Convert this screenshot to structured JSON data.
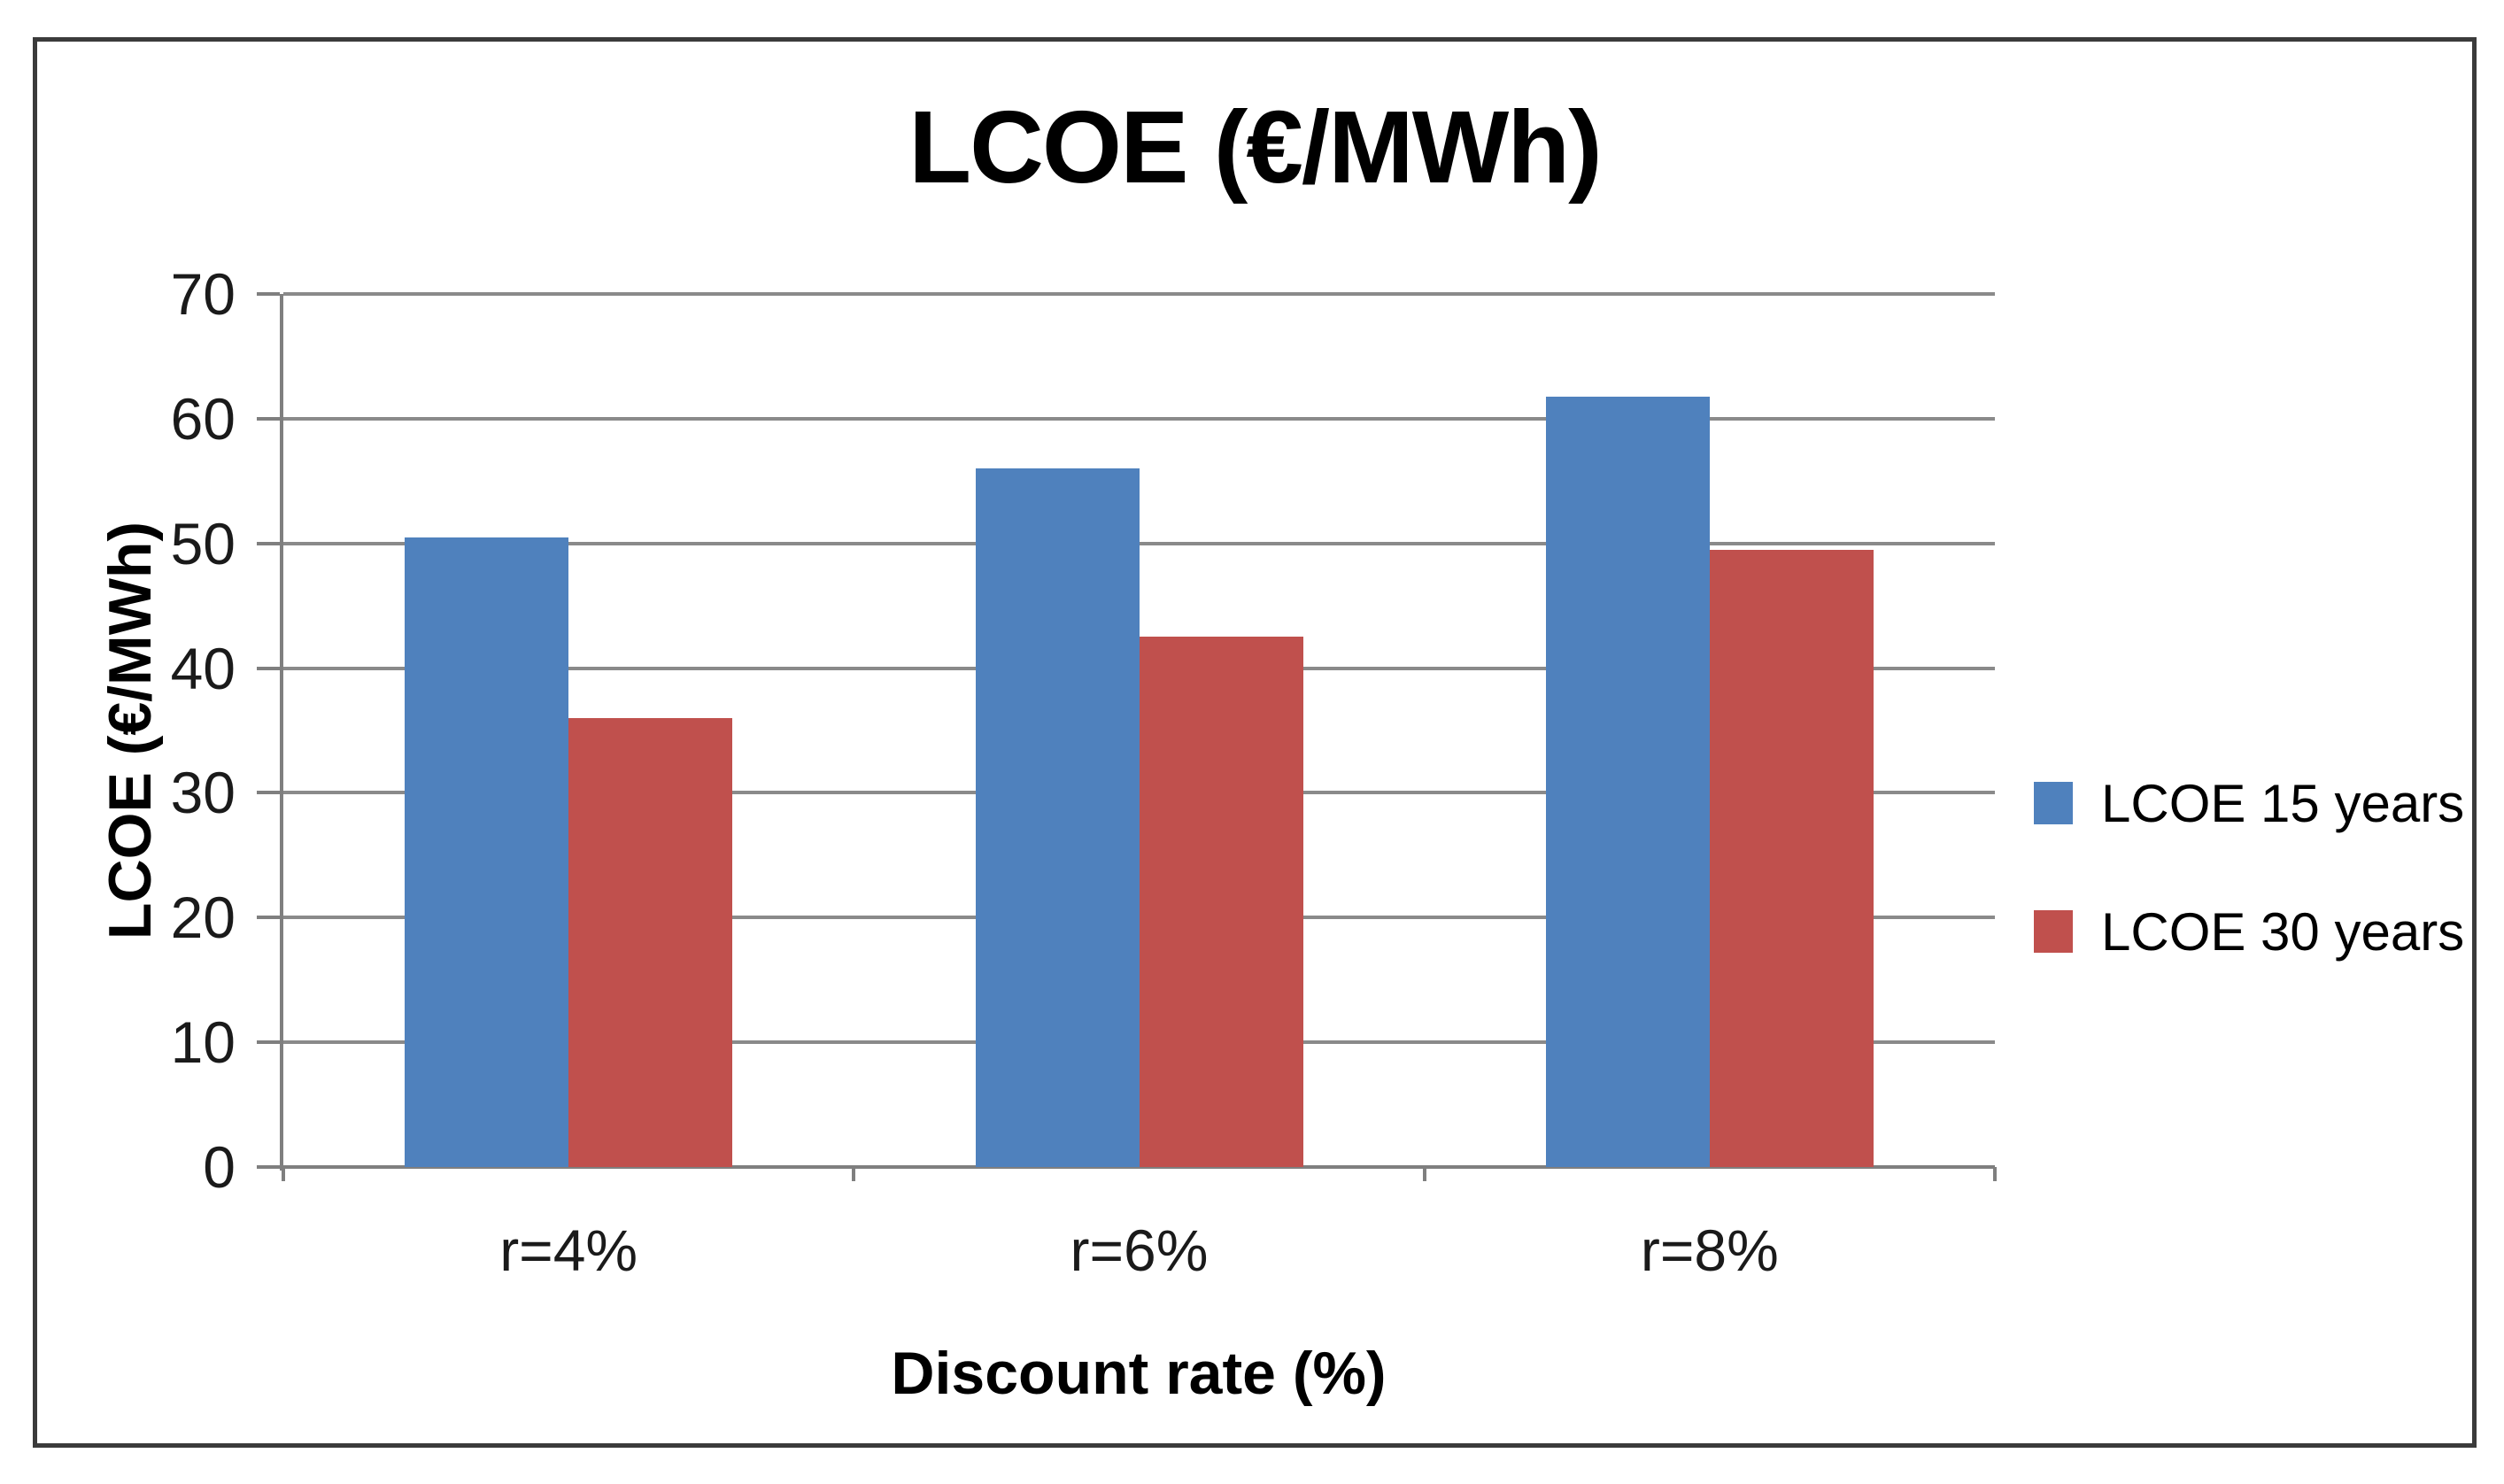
{
  "chart_data": {
    "type": "bar",
    "title": "LCOE (€/MWh)",
    "xlabel": "Discount rate (%)",
    "ylabel": "LCOE (€/MWh)",
    "categories": [
      "r=4%",
      "r=6%",
      "r=8%"
    ],
    "series": [
      {
        "name": "LCOE 15 years",
        "color": "#4F81BD",
        "values": [
          50.5,
          56.0,
          61.8
        ]
      },
      {
        "name": "LCOE 30 years",
        "color": "#C0504D",
        "values": [
          36.0,
          42.5,
          49.5
        ]
      }
    ],
    "ylim": [
      0,
      70
    ],
    "yticks": [
      0,
      10,
      20,
      30,
      40,
      50,
      60,
      70
    ],
    "grid": "horizontal-major",
    "legend_position": "right",
    "colors": {
      "gridline": "#8a8a8a",
      "axis": "#7f7f7f",
      "figure_border": "#3b3b3b",
      "background": "#ffffff",
      "text": "#1a1a1a"
    }
  }
}
